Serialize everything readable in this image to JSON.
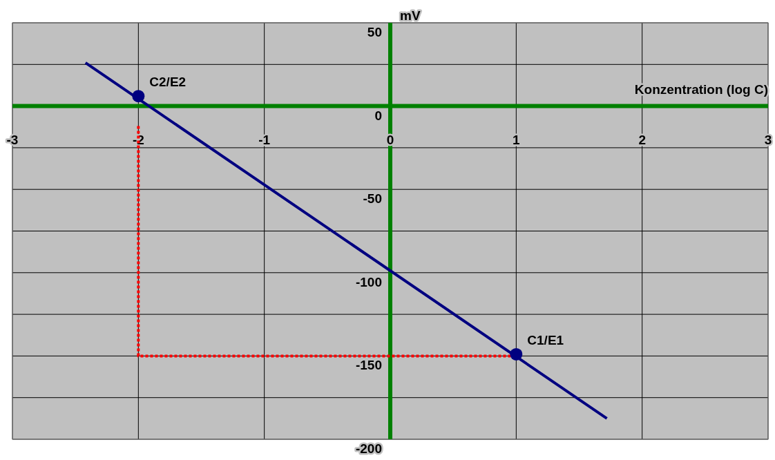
{
  "chart_data": {
    "type": "line",
    "xlabel": "Konzentration (log C)",
    "ylabel": "mV",
    "xlim": [
      -3,
      3
    ],
    "ylim": [
      -200,
      50
    ],
    "xticks": [
      -3,
      -2,
      -1,
      0,
      1,
      2,
      3
    ],
    "yticks": [
      -200,
      {
        "value": -175,
        "label": null
      },
      -150,
      {
        "value": -125,
        "label": null
      },
      -100,
      {
        "value": -75,
        "label": null
      },
      -50,
      {
        "value": -25,
        "label": null
      },
      0,
      {
        "value": 25,
        "label": null
      },
      50
    ],
    "grid": true,
    "series": [
      {
        "color": "#ff0000",
        "line_style": "dotted",
        "marker": "none",
        "x": [
          -2,
          -2,
          1
        ],
        "values": [
          -12,
          -150,
          -150
        ]
      },
      {
        "color": "#000080",
        "line_style": "solid",
        "marker": "none",
        "x": [
          -2.42,
          1.72
        ],
        "values": [
          26,
          -187.5
        ]
      },
      {
        "type": "scatter",
        "color": "#000080",
        "marker": "circle",
        "x": [
          -2,
          1
        ],
        "values": [
          6,
          -149
        ]
      }
    ],
    "annotations": [
      {
        "text": "C2/E2",
        "x": -2,
        "y": 6
      },
      {
        "text": "C1/E1",
        "x": 1,
        "y": -149
      }
    ]
  }
}
